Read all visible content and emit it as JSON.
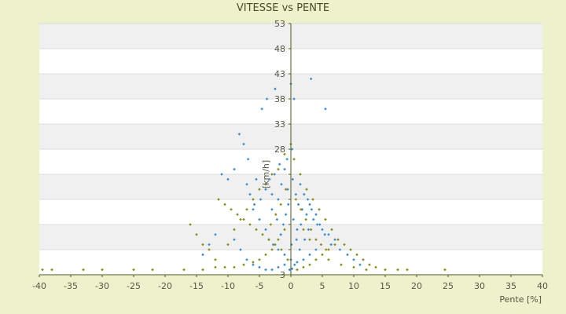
{
  "chart_data": {
    "type": "scatter",
    "title": "VITESSE vs PENTE",
    "xlabel": "Pente [%]",
    "ylabel": "[km/h]",
    "xlim": [
      -40,
      40
    ],
    "ylim": [
      3,
      53
    ],
    "x_ticks": [
      -40,
      -35,
      -30,
      -25,
      -20,
      -15,
      -10,
      -5,
      0,
      5,
      10,
      15,
      20,
      25,
      30,
      35,
      40
    ],
    "y_ticks": [
      3,
      8,
      13,
      18,
      23,
      28,
      33,
      38,
      43,
      48,
      53
    ],
    "y_tick_labels": [
      "3",
      "",
      "",
      "",
      "",
      "28",
      "33",
      "38",
      "43",
      "48",
      "53"
    ],
    "grid": true,
    "grid_style": "alternating horizontal bands",
    "series": [
      {
        "color": "#3a8fd6",
        "marker": "small-diamond",
        "points": [
          [
            -8.2,
            31
          ],
          [
            -7.5,
            29
          ],
          [
            -6.8,
            26
          ],
          [
            -4.6,
            36
          ],
          [
            -3.8,
            38
          ],
          [
            -2.5,
            40
          ],
          [
            0,
            41
          ],
          [
            0.5,
            38
          ],
          [
            3.2,
            42
          ],
          [
            5.5,
            36
          ],
          [
            -11,
            23
          ],
          [
            -10,
            22
          ],
          [
            -9,
            24
          ],
          [
            -7,
            21
          ],
          [
            -5.5,
            22
          ],
          [
            -4,
            20
          ],
          [
            -3,
            19
          ],
          [
            -2,
            18
          ],
          [
            -1.5,
            21
          ],
          [
            -1,
            24
          ],
          [
            -0.5,
            20
          ],
          [
            0.3,
            22
          ],
          [
            0.8,
            19
          ],
          [
            1.2,
            17
          ],
          [
            1.8,
            16
          ],
          [
            2.5,
            15
          ],
          [
            3,
            17
          ],
          [
            3.6,
            14
          ],
          [
            4.2,
            13
          ],
          [
            5,
            12
          ],
          [
            6,
            11
          ],
          [
            7,
            10
          ],
          [
            -6,
            16
          ],
          [
            -5,
            14
          ],
          [
            -4,
            12
          ],
          [
            -3.5,
            10
          ],
          [
            -2.8,
            9
          ],
          [
            -2,
            8
          ],
          [
            -1,
            7
          ],
          [
            0,
            6
          ],
          [
            1,
            5.5
          ],
          [
            2,
            6
          ],
          [
            3,
            7
          ],
          [
            4,
            8
          ],
          [
            -12,
            11
          ],
          [
            -13,
            9
          ],
          [
            -14,
            7
          ],
          [
            -9,
            10
          ],
          [
            -8,
            8
          ],
          [
            -7,
            6
          ],
          [
            -6,
            5
          ],
          [
            -5,
            4.5
          ],
          [
            -4,
            4
          ],
          [
            -3,
            4
          ],
          [
            -2,
            4.5
          ],
          [
            -1,
            5
          ],
          [
            -0.2,
            4
          ],
          [
            0.2,
            4.2
          ],
          [
            0.6,
            5
          ],
          [
            1.4,
            8
          ],
          [
            2.2,
            10
          ],
          [
            2.8,
            12
          ],
          [
            -1.2,
            13
          ],
          [
            -0.8,
            15
          ],
          [
            -0.4,
            17
          ],
          [
            0.4,
            14
          ],
          [
            1,
            12
          ],
          [
            -2.2,
            14
          ],
          [
            -3,
            16
          ],
          [
            -1.6,
            11
          ],
          [
            0.1,
            9
          ],
          [
            0.9,
            10
          ],
          [
            1.6,
            13
          ],
          [
            -4.8,
            18
          ],
          [
            -5.8,
            17
          ],
          [
            -6.5,
            19
          ],
          [
            -0.6,
            26
          ],
          [
            0.2,
            28
          ],
          [
            -1.8,
            25
          ],
          [
            -2.6,
            23
          ],
          [
            -3.4,
            22
          ],
          [
            1.5,
            21
          ],
          [
            2.1,
            19
          ],
          [
            2.7,
            18
          ],
          [
            3.3,
            16
          ],
          [
            4,
            15
          ],
          [
            4.6,
            13
          ],
          [
            5.4,
            11
          ],
          [
            6.4,
            9
          ],
          [
            7.8,
            8
          ],
          [
            9,
            7
          ],
          [
            10,
            6
          ],
          [
            11,
            5
          ]
        ]
      },
      {
        "color": "#8a8f1a",
        "marker": "small-diamond",
        "points": [
          [
            -39.5,
            4
          ],
          [
            -38,
            4
          ],
          [
            -33,
            4
          ],
          [
            -30,
            4
          ],
          [
            -25,
            4
          ],
          [
            -22,
            4
          ],
          [
            -17,
            4
          ],
          [
            -14,
            4
          ],
          [
            -12,
            4.5
          ],
          [
            -10.5,
            4.5
          ],
          [
            -9,
            4.5
          ],
          [
            -7.5,
            5
          ],
          [
            -6,
            5.5
          ],
          [
            -5,
            6
          ],
          [
            -4,
            7
          ],
          [
            -3,
            8
          ],
          [
            -2,
            10
          ],
          [
            -1,
            12
          ],
          [
            -16,
            13
          ],
          [
            -15,
            11
          ],
          [
            -14,
            9
          ],
          [
            -13,
            8
          ],
          [
            -12,
            6
          ],
          [
            -10,
            9
          ],
          [
            -9,
            12
          ],
          [
            -8,
            14
          ],
          [
            -7,
            16
          ],
          [
            -6,
            18
          ],
          [
            -5,
            20
          ],
          [
            -4,
            21
          ],
          [
            -3,
            23
          ],
          [
            -2,
            24
          ],
          [
            -1,
            27
          ],
          [
            0,
            29
          ],
          [
            0.5,
            26
          ],
          [
            1.5,
            23
          ],
          [
            2.5,
            20
          ],
          [
            3.5,
            18
          ],
          [
            4.5,
            16
          ],
          [
            5.5,
            14
          ],
          [
            6.5,
            12
          ],
          [
            7.5,
            10
          ],
          [
            8.5,
            9
          ],
          [
            9.5,
            8
          ],
          [
            10.5,
            7
          ],
          [
            11.5,
            6
          ],
          [
            12.5,
            5
          ],
          [
            13.5,
            4.5
          ],
          [
            15,
            4
          ],
          [
            17,
            4
          ],
          [
            18.5,
            4
          ],
          [
            24.5,
            4
          ],
          [
            1,
            4
          ],
          [
            2,
            4.5
          ],
          [
            3,
            5
          ],
          [
            4,
            6
          ],
          [
            5,
            7
          ],
          [
            6,
            8
          ],
          [
            7,
            9
          ],
          [
            -0.5,
            6
          ],
          [
            -1.5,
            8
          ],
          [
            -2.5,
            9
          ],
          [
            -3.5,
            10
          ],
          [
            -4.5,
            11
          ],
          [
            -5.5,
            12
          ],
          [
            -6.5,
            13
          ],
          [
            -7.5,
            14
          ],
          [
            -8.5,
            15
          ],
          [
            -9.5,
            16
          ],
          [
            -10.5,
            17
          ],
          [
            -11.5,
            18
          ],
          [
            0.8,
            18
          ],
          [
            1.6,
            16
          ],
          [
            2.4,
            14
          ],
          [
            3.2,
            12
          ],
          [
            4,
            10
          ],
          [
            4.8,
            9
          ],
          [
            5.6,
            8
          ],
          [
            -0.8,
            20
          ],
          [
            -1.6,
            17
          ],
          [
            -2.4,
            15
          ],
          [
            -3.2,
            13
          ],
          [
            2,
            12
          ],
          [
            3,
            10
          ],
          [
            6,
            6
          ],
          [
            8,
            5
          ],
          [
            10,
            4.5
          ],
          [
            12,
            4
          ]
        ]
      }
    ]
  }
}
